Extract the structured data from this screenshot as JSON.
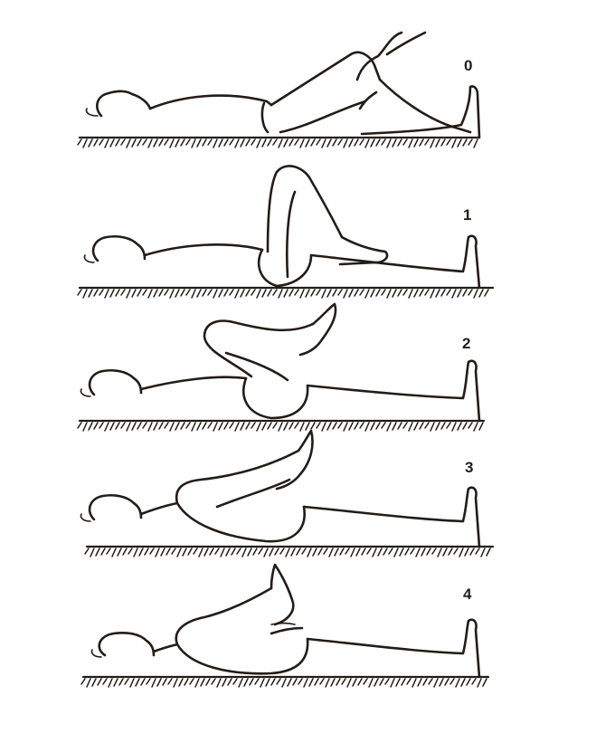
{
  "stages": [
    {
      "id": "stage-0",
      "number": "0"
    },
    {
      "id": "stage-1",
      "number": "1"
    },
    {
      "id": "stage-2",
      "number": "2"
    },
    {
      "id": "stage-3",
      "number": "3"
    },
    {
      "id": "stage-4",
      "number": "4"
    }
  ],
  "colors": {
    "ink": "#231c17",
    "paper": "#ffffff"
  }
}
